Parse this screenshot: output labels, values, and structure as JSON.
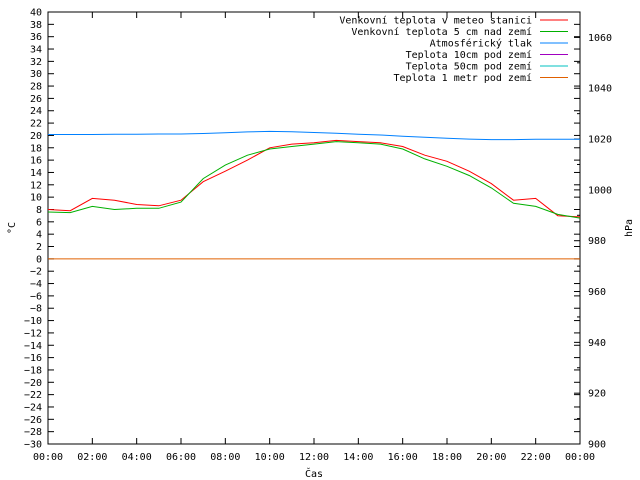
{
  "chart_data": {
    "type": "line",
    "title": "",
    "xlabel": "Čas",
    "ylabel_left": "°C",
    "ylabel_right": "hPa",
    "x_ticks": [
      "00:00",
      "02:00",
      "04:00",
      "06:00",
      "08:00",
      "10:00",
      "12:00",
      "14:00",
      "16:00",
      "18:00",
      "20:00",
      "22:00",
      "00:00"
    ],
    "x_hours": [
      0,
      1,
      2,
      3,
      4,
      5,
      6,
      7,
      8,
      9,
      10,
      11,
      12,
      13,
      14,
      15,
      16,
      17,
      18,
      19,
      20,
      21,
      22,
      23,
      24
    ],
    "ylim_left": [
      -30,
      40
    ],
    "ylim_right": [
      900,
      1070
    ],
    "y_ticks_left": [
      40,
      38,
      36,
      34,
      32,
      30,
      28,
      26,
      24,
      22,
      20,
      18,
      16,
      14,
      12,
      10,
      8,
      6,
      4,
      2,
      0,
      -2,
      -4,
      -6,
      -8,
      -10,
      -12,
      -14,
      -16,
      -18,
      -20,
      -22,
      -24,
      -26,
      -28,
      -30
    ],
    "y_ticks_right": [
      1060,
      1040,
      1020,
      1000,
      980,
      960,
      940,
      920,
      900
    ],
    "grid": false,
    "legend_position": "top-right",
    "series": [
      {
        "name": "Venkovní teplota v meteo stanici",
        "color": "#ff0000",
        "axis": "left",
        "values": [
          8.0,
          7.8,
          9.8,
          9.5,
          8.8,
          8.6,
          9.5,
          12.5,
          14.2,
          16.0,
          18.0,
          18.6,
          18.8,
          19.2,
          19.0,
          18.8,
          18.2,
          16.8,
          15.8,
          14.2,
          12.2,
          9.5,
          9.8,
          7.0,
          6.8
        ]
      },
      {
        "name": "Venkovní teplota 5 cm nad zemí",
        "color": "#00b000",
        "axis": "left",
        "values": [
          7.6,
          7.5,
          8.5,
          8.0,
          8.2,
          8.2,
          9.2,
          13.0,
          15.2,
          16.8,
          17.8,
          18.2,
          18.6,
          19.0,
          18.8,
          18.6,
          17.8,
          16.2,
          15.0,
          13.5,
          11.5,
          9.0,
          8.5,
          7.2,
          6.6
        ]
      },
      {
        "name": "Atmosférický tlak",
        "color": "#0080ff",
        "axis": "right",
        "values": [
          1021.8,
          1021.8,
          1021.8,
          1021.9,
          1021.9,
          1022.0,
          1022.0,
          1022.2,
          1022.5,
          1022.8,
          1023.0,
          1022.9,
          1022.6,
          1022.3,
          1021.9,
          1021.6,
          1021.1,
          1020.7,
          1020.3,
          1020.0,
          1019.8,
          1019.8,
          1019.9,
          1019.9,
          1019.9
        ]
      },
      {
        "name": "Teplota 10cm pod zemí",
        "color": "#a000c0",
        "axis": "left",
        "values": []
      },
      {
        "name": "Teplota 50cm pod zemí",
        "color": "#00c0c0",
        "axis": "left",
        "values": []
      },
      {
        "name": "Teplota 1 metr pod zemí",
        "color": "#e06000",
        "axis": "left",
        "values": [
          0,
          0,
          0,
          0,
          0,
          0,
          0,
          0,
          0,
          0,
          0,
          0,
          0,
          0,
          0,
          0,
          0,
          0,
          0,
          0,
          0,
          0,
          0,
          0,
          0
        ]
      }
    ]
  }
}
